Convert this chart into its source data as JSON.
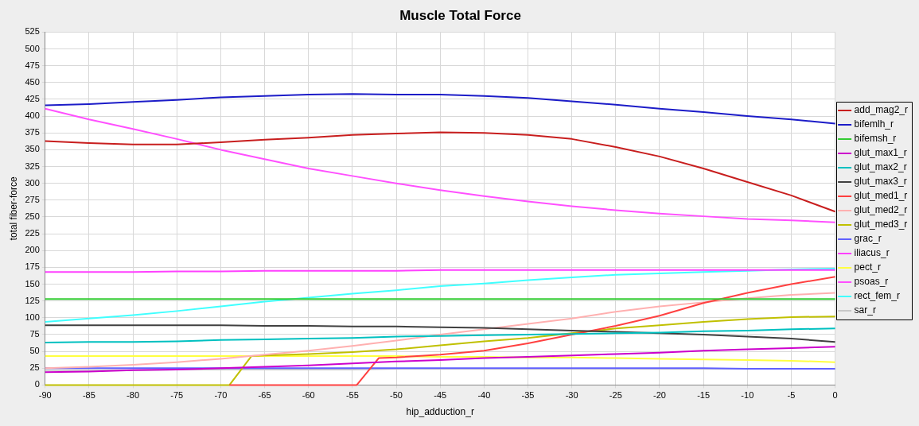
{
  "chart_data": {
    "type": "line",
    "title": "Muscle Total Force",
    "xlabel": "hip_adduction_r",
    "ylabel": "total fiber-force",
    "x": [
      -90,
      -85,
      -80,
      -75,
      -70,
      -65,
      -60,
      -55,
      -50,
      -45,
      -40,
      -35,
      -30,
      -25,
      -20,
      -15,
      -10,
      -5,
      0
    ],
    "xlim": [
      -90,
      0
    ],
    "xticks": [
      -90,
      -85,
      -80,
      -75,
      -70,
      -65,
      -60,
      -55,
      -50,
      -45,
      -40,
      -35,
      -30,
      -25,
      -20,
      -15,
      -10,
      -5,
      0
    ],
    "ylim": [
      0,
      525
    ],
    "yticks": [
      0,
      25,
      50,
      75,
      100,
      125,
      150,
      175,
      200,
      225,
      250,
      275,
      300,
      325,
      350,
      375,
      400,
      425,
      450,
      475,
      500,
      525
    ],
    "grid": true,
    "legend": "right",
    "marker": "none",
    "line_style": "solid",
    "series": [
      {
        "name": "add_mag2_r",
        "color": "#c81e1e",
        "values": [
          363,
          360,
          358,
          358,
          361,
          365,
          368,
          372,
          374,
          376,
          375,
          372,
          366,
          354,
          340,
          322,
          302,
          282,
          258
        ]
      },
      {
        "name": "bifemlh_r",
        "color": "#1c1cc8",
        "values": [
          416,
          418,
          421,
          424,
          428,
          430,
          432,
          433,
          432,
          432,
          430,
          427,
          422,
          417,
          411,
          406,
          400,
          395,
          389
        ]
      },
      {
        "name": "bifemsh_r",
        "color": "#33cc33",
        "values": [
          128,
          128,
          128,
          128,
          128,
          128,
          128,
          128,
          128,
          128,
          128,
          128,
          128,
          128,
          128,
          128,
          128,
          128,
          128
        ]
      },
      {
        "name": "glut_max1_r",
        "color": "#cc00cc",
        "values": [
          19,
          20,
          22,
          23,
          25,
          27,
          29,
          32,
          35,
          37,
          40,
          42,
          44,
          46,
          48,
          51,
          53,
          55,
          57
        ]
      },
      {
        "name": "glut_max2_r",
        "color": "#00c0c0",
        "values": [
          63,
          64,
          64,
          65,
          67,
          68,
          69,
          70,
          72,
          73,
          74,
          75,
          76,
          77,
          78,
          80,
          81,
          83,
          84
        ]
      },
      {
        "name": "glut_max3_r",
        "color": "#404040",
        "values": [
          89,
          89,
          89,
          89,
          89,
          88,
          88,
          87,
          87,
          86,
          85,
          83,
          81,
          79,
          77,
          75,
          72,
          69,
          64
        ]
      },
      {
        "name": "glut_med1_r",
        "color": "#ff4040",
        "x": [
          -69,
          -65,
          -60,
          -55,
          -54.5,
          -52,
          -50,
          -45,
          -40,
          -35,
          -30,
          -25,
          -20,
          -15,
          -10,
          -5,
          0
        ],
        "values": [
          0,
          0,
          0,
          0,
          0,
          40,
          41,
          45,
          51,
          62,
          75,
          88,
          103,
          122,
          137,
          150,
          161
        ]
      },
      {
        "name": "glut_med2_r",
        "color": "#ffb0b0",
        "values": [
          25,
          27,
          30,
          34,
          39,
          45,
          51,
          58,
          66,
          75,
          83,
          91,
          99,
          109,
          117,
          123,
          129,
          134,
          137
        ]
      },
      {
        "name": "glut_med3_r",
        "color": "#c0c000",
        "x": [
          -90,
          -85,
          -80,
          -75,
          -70,
          -69,
          -66.5,
          -65,
          -60,
          -55,
          -50,
          -45,
          -40,
          -35,
          -30,
          -25,
          -20,
          -15,
          -10,
          -5,
          0
        ],
        "values": [
          0,
          0,
          0,
          0,
          0,
          0,
          43,
          44,
          46,
          49,
          53,
          59,
          65,
          70,
          77,
          84,
          89,
          94,
          98,
          101,
          102
        ]
      },
      {
        "name": "grac_r",
        "color": "#6060ff",
        "values": [
          25,
          25,
          25,
          25,
          25,
          25,
          25,
          25,
          25,
          25,
          25,
          25,
          25,
          25,
          25,
          25,
          24,
          24,
          24
        ]
      },
      {
        "name": "iliacus_r",
        "color": "#ff40ff",
        "values": [
          168,
          168,
          168,
          169,
          169,
          170,
          170,
          170,
          170,
          171,
          171,
          171,
          171,
          171,
          171,
          171,
          171,
          171,
          171
        ]
      },
      {
        "name": "pect_r",
        "color": "#ffff40",
        "values": [
          43,
          43,
          43,
          43,
          43,
          43,
          43,
          43,
          43,
          42,
          42,
          41,
          41,
          40,
          39,
          38,
          37,
          36,
          34
        ]
      },
      {
        "name": "psoas_r",
        "color": "#ff50ff",
        "values": [
          411,
          395,
          381,
          366,
          350,
          336,
          322,
          311,
          300,
          290,
          281,
          273,
          266,
          260,
          255,
          251,
          247,
          245,
          242
        ]
      },
      {
        "name": "rect_fem_r",
        "color": "#40ffff",
        "values": [
          94,
          99,
          104,
          110,
          117,
          124,
          130,
          136,
          141,
          147,
          151,
          156,
          160,
          164,
          166,
          168,
          170,
          172,
          173
        ]
      },
      {
        "name": "sar_r",
        "color": "#c8c8c8",
        "values": [
          22,
          22,
          22,
          23,
          23,
          23,
          23,
          23,
          24,
          24,
          24,
          24,
          24,
          24,
          24,
          24,
          24,
          24,
          24
        ]
      }
    ]
  }
}
